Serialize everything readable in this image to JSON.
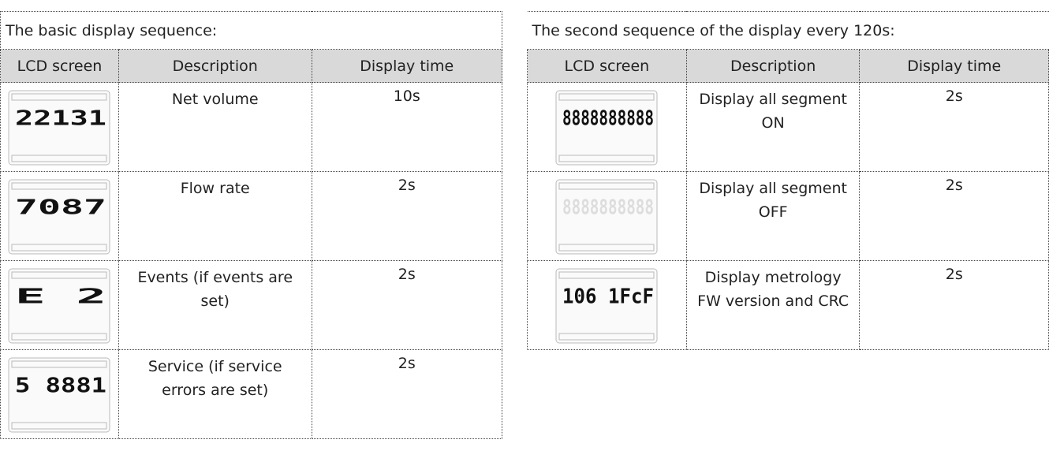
{
  "left": {
    "title": "The basic display sequence:",
    "headers": [
      "LCD screen",
      "Description",
      "Display time"
    ],
    "rows": [
      {
        "lcd": "22131",
        "description": "Net volume",
        "time": "10s"
      },
      {
        "lcd": "7087",
        "description": "Flow rate",
        "time": "2s"
      },
      {
        "lcd": "E 2",
        "description": "Events (if events are set)",
        "time": "2s"
      },
      {
        "lcd": "5 8881",
        "description": "Service (if service errors are set)",
        "time": "2s"
      }
    ]
  },
  "right": {
    "title": "The second sequence of the display every 120s:",
    "headers": [
      "LCD screen",
      "Description",
      "Display time"
    ],
    "rows": [
      {
        "lcd": "8888888888",
        "description": "Display all segment ON",
        "time": "2s"
      },
      {
        "lcd": "8888888888",
        "description": "Display all segment OFF",
        "time": "2s"
      },
      {
        "lcd": "106 1FcF",
        "description": "Display metrology FW version and CRC",
        "time": "2s"
      }
    ]
  }
}
